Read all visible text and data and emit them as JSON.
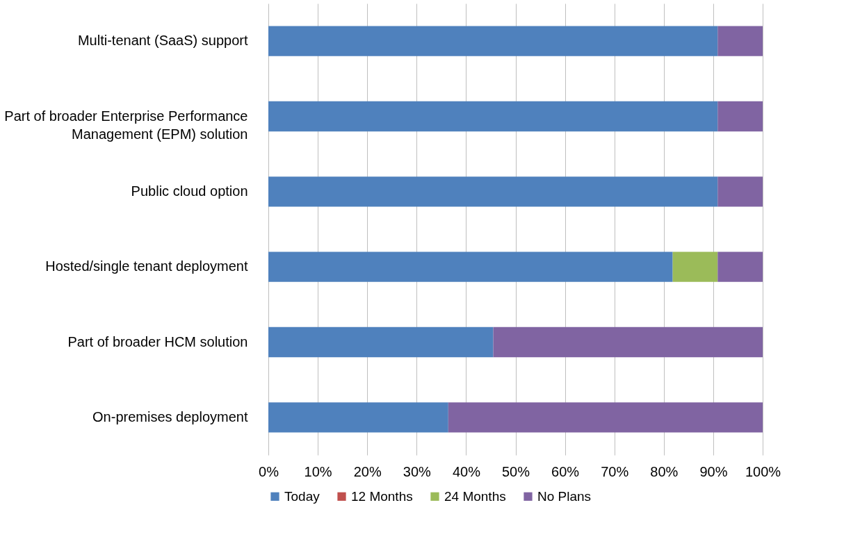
{
  "chart_data": {
    "type": "bar",
    "orientation": "horizontal",
    "stacked": true,
    "categories": [
      "Multi-tenant (SaaS) support",
      "Part of broader Enterprise Performance Management (EPM) solution",
      "Public cloud option",
      "Hosted/single tenant deployment",
      "Part of broader HCM solution",
      "On-premises deployment"
    ],
    "series": [
      {
        "name": "Today",
        "color": "#4f81bd",
        "values": [
          90.9,
          90.9,
          90.9,
          81.8,
          45.5,
          36.4
        ]
      },
      {
        "name": "12 Months",
        "color": "#c0504d",
        "values": [
          0,
          0,
          0,
          0,
          0,
          0
        ]
      },
      {
        "name": "24 Months",
        "color": "#9bbb59",
        "values": [
          0,
          0,
          0,
          9.1,
          0,
          0
        ]
      },
      {
        "name": "No Plans",
        "color": "#8064a2",
        "values": [
          9.1,
          9.1,
          9.1,
          9.1,
          54.5,
          63.6
        ]
      }
    ],
    "xlim": [
      0,
      100
    ],
    "xticks": [
      {
        "value": 0,
        "label": "0%"
      },
      {
        "value": 10,
        "label": "10%"
      },
      {
        "value": 20,
        "label": "20%"
      },
      {
        "value": 30,
        "label": "30%"
      },
      {
        "value": 40,
        "label": "40%"
      },
      {
        "value": 50,
        "label": "50%"
      },
      {
        "value": 60,
        "label": "60%"
      },
      {
        "value": 70,
        "label": "70%"
      },
      {
        "value": 80,
        "label": "80%"
      },
      {
        "value": 90,
        "label": "90%"
      },
      {
        "value": 100,
        "label": "100%"
      }
    ],
    "grid": "x",
    "legend": "bottom"
  }
}
